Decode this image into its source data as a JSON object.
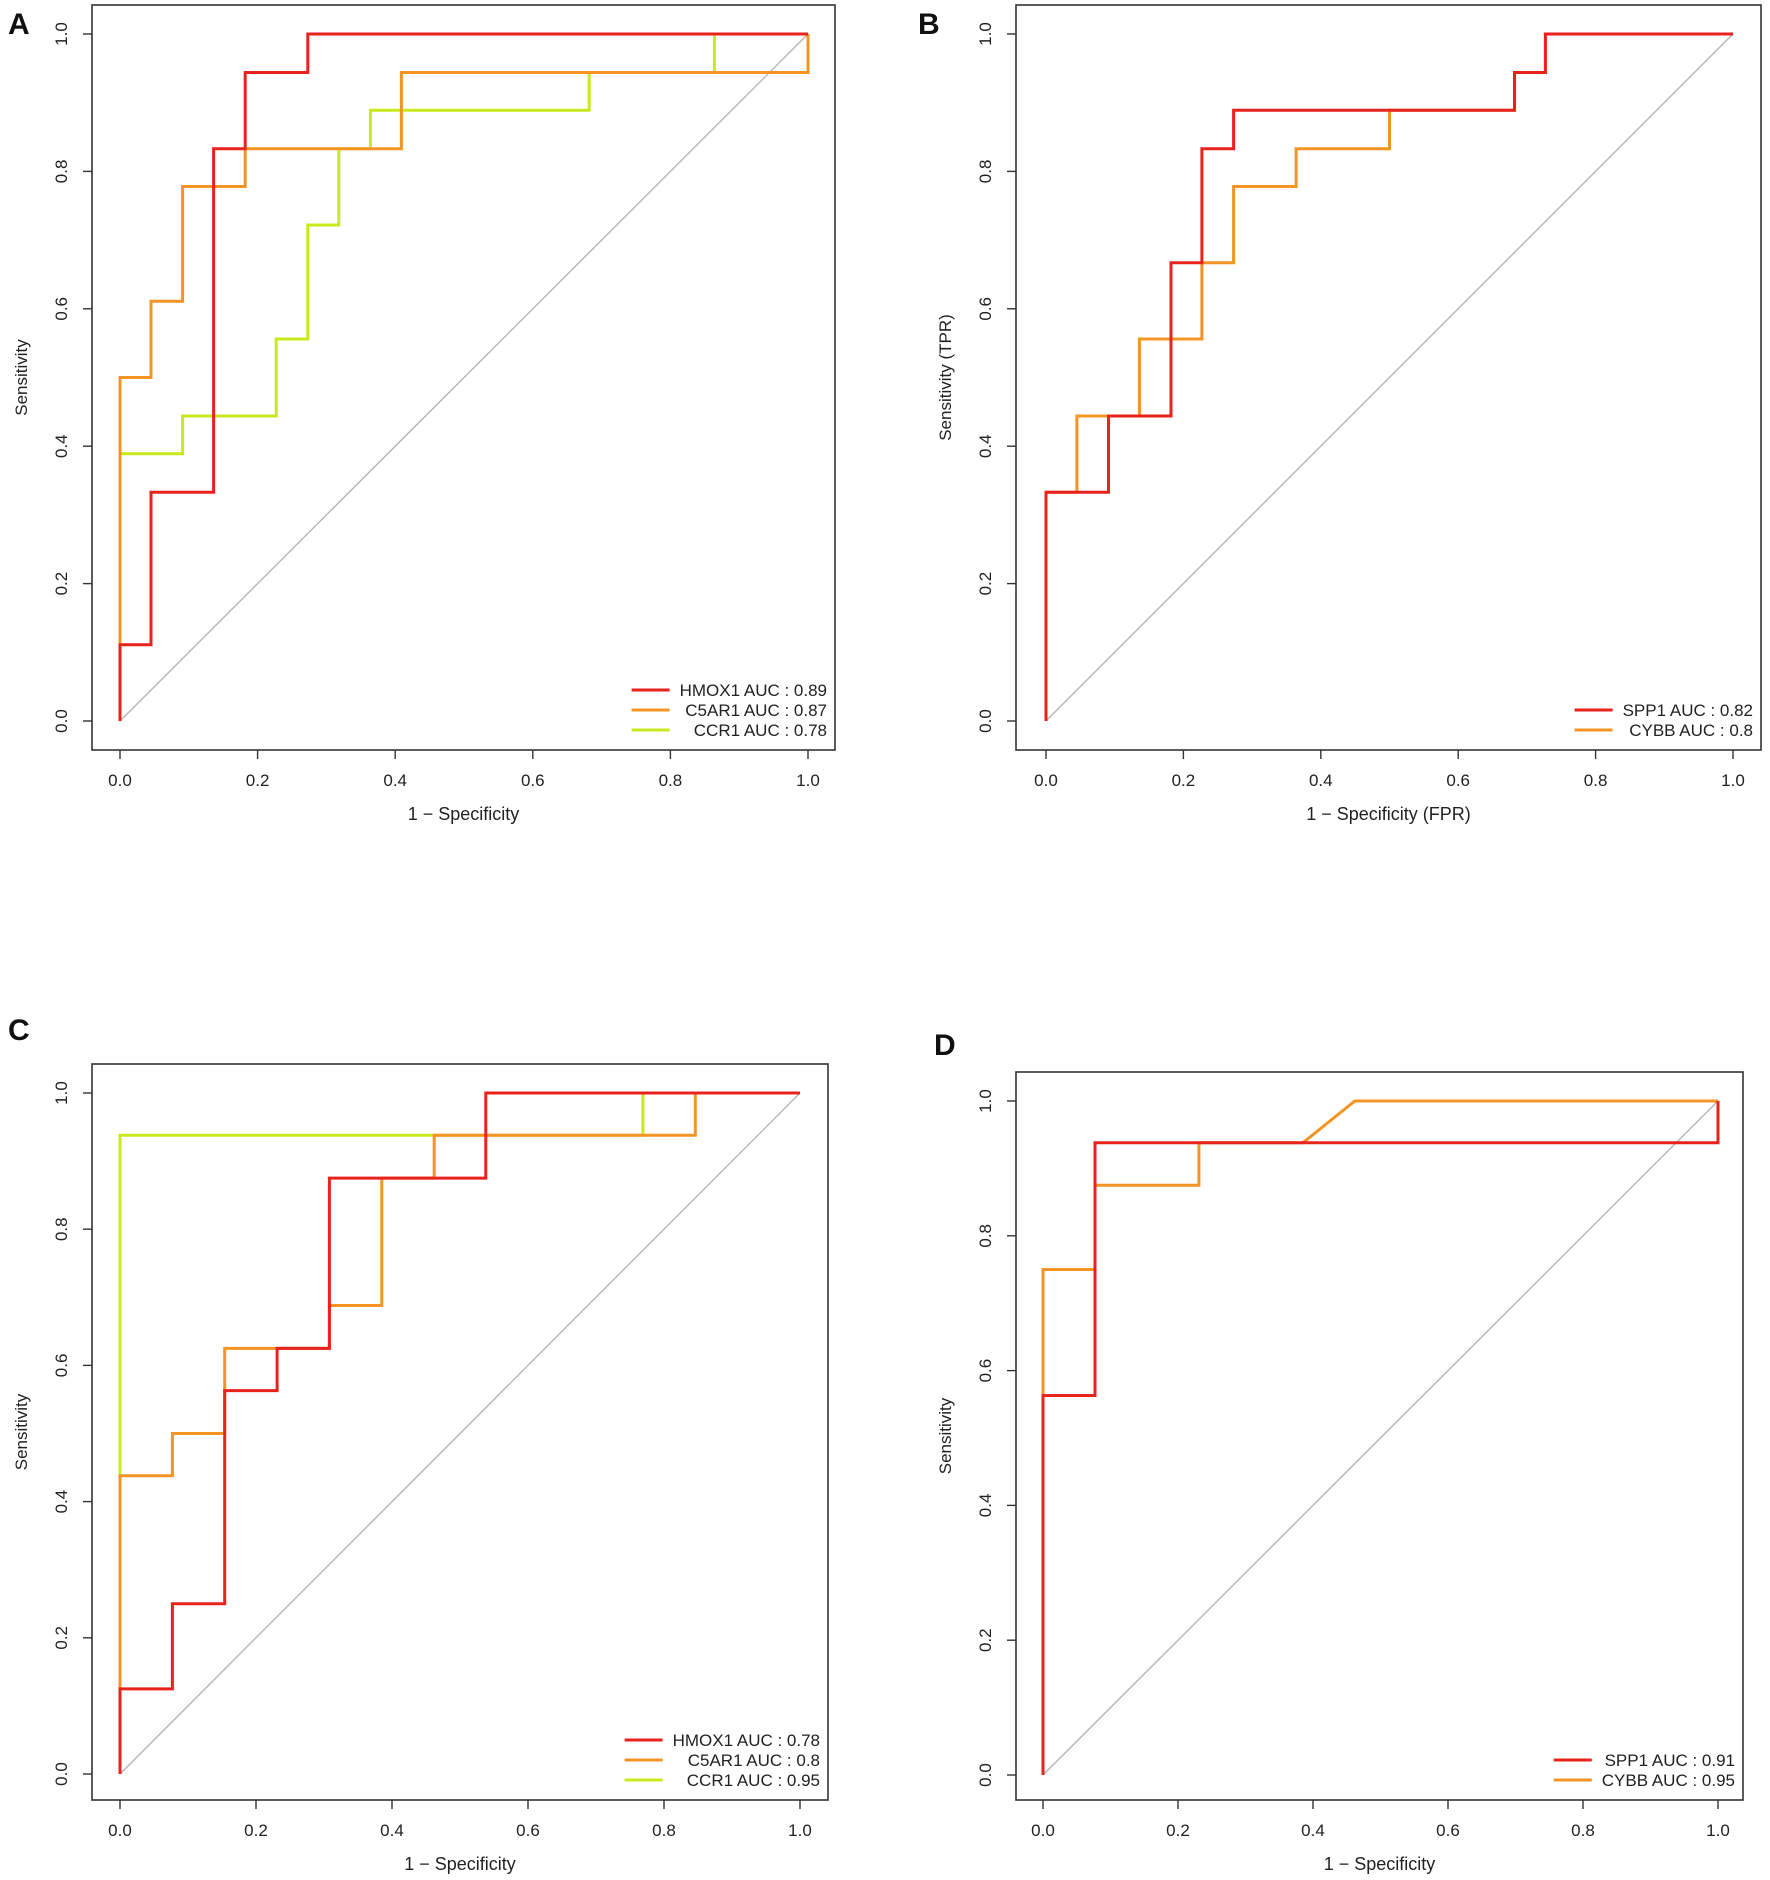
{
  "figure": {
    "background": "#ffffff",
    "diagonal_color": "#b5b5b5",
    "axis_color": "#333333"
  },
  "chart_data": [
    {
      "panel": "A",
      "type": "line",
      "title": "",
      "xlabel": "1 − Specificity",
      "ylabel": "Sensitivity",
      "xlim": [
        0,
        1
      ],
      "ylim": [
        0,
        1
      ],
      "xticks": [
        "0.0",
        "0.2",
        "0.4",
        "0.6",
        "0.8",
        "1.0"
      ],
      "yticks": [
        "0.0",
        "0.2",
        "0.4",
        "0.6",
        "0.8",
        "1.0"
      ],
      "grid": false,
      "legend_position": "bottom-right",
      "series": [
        {
          "name": "HMOX1",
          "legend": "HMOX1 AUC : 0.89",
          "color": "#e8221c",
          "points": [
            [
              0,
              0
            ],
            [
              0,
              0.111
            ],
            [
              0.045,
              0.111
            ],
            [
              0.045,
              0.333
            ],
            [
              0.136,
              0.333
            ],
            [
              0.136,
              0.833
            ],
            [
              0.182,
              0.833
            ],
            [
              0.182,
              0.944
            ],
            [
              0.273,
              0.944
            ],
            [
              0.273,
              1
            ],
            [
              1,
              1
            ]
          ]
        },
        {
          "name": "C5AR1",
          "legend": "C5AR1 AUC : 0.87",
          "color": "#f39425",
          "points": [
            [
              0,
              0
            ],
            [
              0,
              0.5
            ],
            [
              0.045,
              0.5
            ],
            [
              0.045,
              0.611
            ],
            [
              0.091,
              0.611
            ],
            [
              0.091,
              0.778
            ],
            [
              0.182,
              0.778
            ],
            [
              0.182,
              0.833
            ],
            [
              0.409,
              0.833
            ],
            [
              0.409,
              0.944
            ],
            [
              1,
              0.944
            ],
            [
              1,
              1
            ]
          ]
        },
        {
          "name": "CCR1",
          "legend": "CCR1 AUC : 0.78",
          "color": "#c8ea1c",
          "points": [
            [
              0,
              0
            ],
            [
              0,
              0.389
            ],
            [
              0.091,
              0.389
            ],
            [
              0.091,
              0.444
            ],
            [
              0.227,
              0.444
            ],
            [
              0.227,
              0.556
            ],
            [
              0.273,
              0.556
            ],
            [
              0.273,
              0.722
            ],
            [
              0.318,
              0.722
            ],
            [
              0.318,
              0.833
            ],
            [
              0.364,
              0.833
            ],
            [
              0.364,
              0.889
            ],
            [
              0.682,
              0.889
            ],
            [
              0.682,
              0.944
            ],
            [
              0.864,
              0.944
            ],
            [
              0.864,
              1
            ],
            [
              1,
              1
            ]
          ]
        }
      ]
    },
    {
      "panel": "B",
      "type": "line",
      "title": "",
      "xlabel": "1 − Specificity (FPR)",
      "ylabel": "Sensitivity (TPR)",
      "xlim": [
        0,
        1
      ],
      "ylim": [
        0,
        1
      ],
      "xticks": [
        "0.0",
        "0.2",
        "0.4",
        "0.6",
        "0.8",
        "1.0"
      ],
      "yticks": [
        "0.0",
        "0.2",
        "0.4",
        "0.6",
        "0.8",
        "1.0"
      ],
      "grid": false,
      "legend_position": "bottom-right",
      "series": [
        {
          "name": "SPP1",
          "legend": "SPP1 AUC : 0.82",
          "color": "#e8221c",
          "points": [
            [
              0,
              0
            ],
            [
              0,
              0.333
            ],
            [
              0.091,
              0.333
            ],
            [
              0.091,
              0.444
            ],
            [
              0.182,
              0.444
            ],
            [
              0.182,
              0.667
            ],
            [
              0.227,
              0.667
            ],
            [
              0.227,
              0.833
            ],
            [
              0.273,
              0.833
            ],
            [
              0.273,
              0.889
            ],
            [
              0.5,
              0.889
            ],
            [
              0.682,
              0.889
            ],
            [
              0.682,
              0.944
            ],
            [
              0.727,
              0.944
            ],
            [
              0.727,
              1
            ],
            [
              1,
              1
            ]
          ]
        },
        {
          "name": "CYBB",
          "legend": "CYBB AUC : 0.8",
          "color": "#f39425",
          "points": [
            [
              0,
              0
            ],
            [
              0,
              0.333
            ],
            [
              0.045,
              0.333
            ],
            [
              0.045,
              0.444
            ],
            [
              0.136,
              0.444
            ],
            [
              0.136,
              0.556
            ],
            [
              0.227,
              0.556
            ],
            [
              0.227,
              0.667
            ],
            [
              0.273,
              0.667
            ],
            [
              0.273,
              0.778
            ],
            [
              0.364,
              0.778
            ],
            [
              0.364,
              0.833
            ],
            [
              0.5,
              0.833
            ],
            [
              0.5,
              0.889
            ],
            [
              0.682,
              0.889
            ],
            [
              0.682,
              0.944
            ],
            [
              0.727,
              0.944
            ],
            [
              0.727,
              1
            ],
            [
              1,
              1
            ]
          ]
        }
      ]
    },
    {
      "panel": "C",
      "type": "line",
      "title": "",
      "xlabel": "1 − Specificity",
      "ylabel": "Sensitivity",
      "xlim": [
        0,
        1
      ],
      "ylim": [
        0,
        1
      ],
      "xticks": [
        "0.0",
        "0.2",
        "0.4",
        "0.6",
        "0.8",
        "1.0"
      ],
      "yticks": [
        "0.0",
        "0.2",
        "0.4",
        "0.6",
        "0.8",
        "1.0"
      ],
      "grid": false,
      "legend_position": "bottom-right",
      "series": [
        {
          "name": "HMOX1",
          "legend": "HMOX1 AUC : 0.78",
          "color": "#e8221c",
          "points": [
            [
              0,
              0
            ],
            [
              0,
              0.125
            ],
            [
              0.077,
              0.125
            ],
            [
              0.077,
              0.25
            ],
            [
              0.154,
              0.25
            ],
            [
              0.154,
              0.5
            ],
            [
              0.154,
              0.563
            ],
            [
              0.231,
              0.563
            ],
            [
              0.231,
              0.625
            ],
            [
              0.308,
              0.625
            ],
            [
              0.308,
              0.875
            ],
            [
              0.538,
              0.875
            ],
            [
              0.538,
              1
            ],
            [
              1,
              1
            ]
          ]
        },
        {
          "name": "C5AR1",
          "legend": "C5AR1 AUC : 0.8",
          "color": "#f39425",
          "points": [
            [
              0,
              0
            ],
            [
              0,
              0.438
            ],
            [
              0.077,
              0.438
            ],
            [
              0.077,
              0.5
            ],
            [
              0.154,
              0.5
            ],
            [
              0.154,
              0.625
            ],
            [
              0.308,
              0.625
            ],
            [
              0.308,
              0.688
            ],
            [
              0.385,
              0.688
            ],
            [
              0.385,
              0.875
            ],
            [
              0.462,
              0.875
            ],
            [
              0.462,
              0.938
            ],
            [
              0.846,
              0.938
            ],
            [
              0.846,
              1
            ],
            [
              1,
              1
            ]
          ]
        },
        {
          "name": "CCR1",
          "legend": "CCR1 AUC : 0.95",
          "color": "#c8ea1c",
          "points": [
            [
              0,
              0
            ],
            [
              0,
              0.938
            ],
            [
              0.769,
              0.938
            ],
            [
              0.769,
              1
            ],
            [
              1,
              1
            ]
          ]
        }
      ]
    },
    {
      "panel": "D",
      "type": "line",
      "title": "",
      "xlabel": "1 − Specificity",
      "ylabel": "Sensitivity",
      "xlim": [
        0,
        1
      ],
      "ylim": [
        0,
        1
      ],
      "xticks": [
        "0.0",
        "0.2",
        "0.4",
        "0.6",
        "0.8",
        "1.0"
      ],
      "yticks": [
        "0.0",
        "0.2",
        "0.4",
        "0.6",
        "0.8",
        "1.0"
      ],
      "grid": false,
      "legend_position": "bottom-right",
      "series": [
        {
          "name": "SPP1",
          "legend": "SPP1 AUC : 0.91",
          "color": "#e8221c",
          "points": [
            [
              0,
              0
            ],
            [
              0,
              0.563
            ],
            [
              0.077,
              0.563
            ],
            [
              0.077,
              0.938
            ],
            [
              1,
              0.938
            ],
            [
              1,
              1
            ]
          ]
        },
        {
          "name": "CYBB",
          "legend": "CYBB AUC : 0.95",
          "color": "#f39425",
          "points": [
            [
              0,
              0
            ],
            [
              0,
              0.75
            ],
            [
              0.077,
              0.75
            ],
            [
              0.077,
              0.875
            ],
            [
              0.231,
              0.875
            ],
            [
              0.231,
              0.938
            ],
            [
              0.385,
              0.938
            ],
            [
              0.462,
              1
            ],
            [
              1,
              1
            ]
          ]
        }
      ]
    }
  ]
}
